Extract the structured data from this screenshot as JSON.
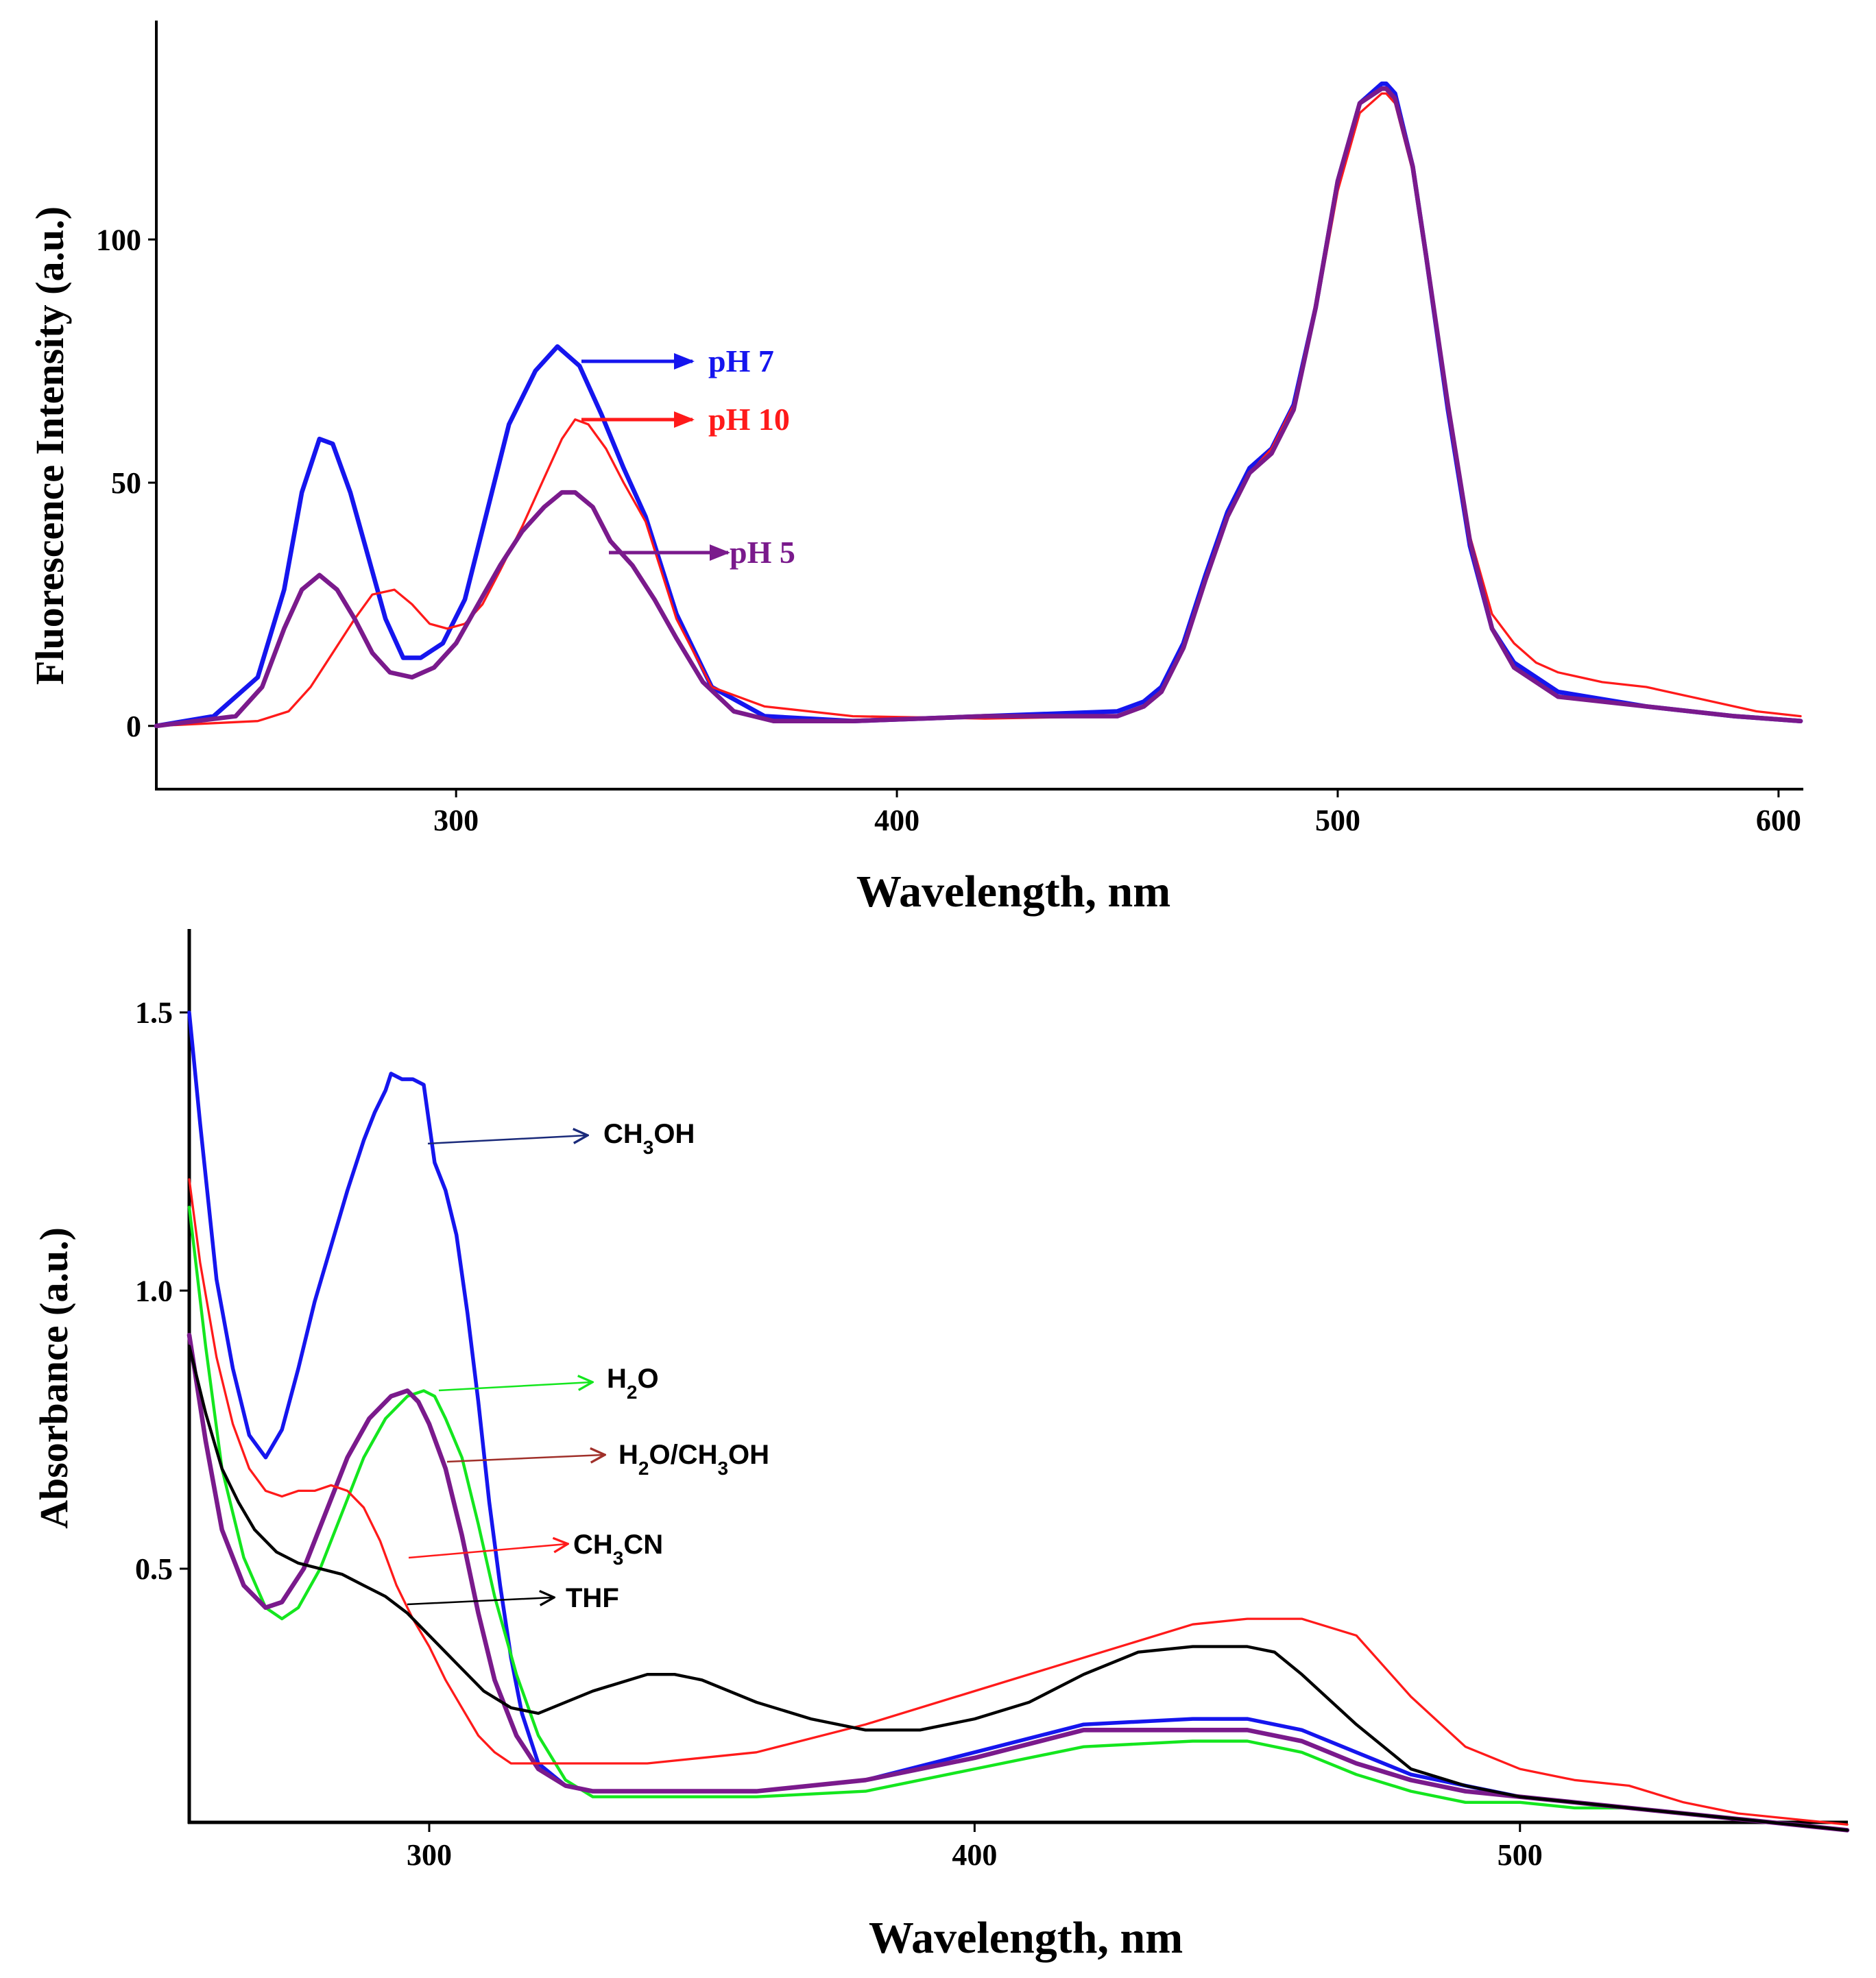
{
  "colors": {
    "blue": "#1515ee",
    "red": "#ff1a1a",
    "purple": "#7a1a8c",
    "green": "#14e61e",
    "black": "#000000",
    "navy": "#1a2a7a",
    "brown": "#a0302a"
  },
  "chart_data": [
    {
      "type": "line",
      "ylabel": "Fluorescence  Intensity (a.u.)",
      "xlabel": "Wavelength, nm",
      "xlim": [
        232,
        605
      ],
      "ylim": [
        -13,
        145
      ],
      "xticks": [
        300,
        400,
        500,
        600
      ],
      "yticks": [
        0,
        50,
        100
      ],
      "series": [
        {
          "name": "pH 7",
          "color": "blue",
          "stroke_weight": 3,
          "x": [
            232,
            245,
            255,
            261,
            265,
            269,
            272,
            276,
            280,
            284,
            288,
            292,
            297,
            302,
            307,
            312,
            318,
            323,
            328,
            333,
            338,
            343,
            350,
            358,
            370,
            390,
            420,
            450,
            456,
            460,
            465,
            470,
            475,
            480,
            485,
            490,
            495,
            500,
            505,
            510,
            511,
            513,
            517,
            520,
            525,
            530,
            535,
            540,
            550,
            570,
            590,
            605
          ],
          "y": [
            0,
            2,
            10,
            28,
            48,
            59,
            58,
            48,
            35,
            22,
            14,
            14,
            17,
            26,
            44,
            62,
            73,
            78,
            74,
            64,
            53,
            43,
            23,
            8,
            2,
            1,
            2,
            3,
            5,
            8,
            17,
            31,
            44,
            53,
            57,
            66,
            86,
            112,
            128,
            132,
            132,
            130,
            115,
            97,
            65,
            37,
            20,
            13,
            7,
            4,
            2,
            1
          ]
        },
        {
          "name": "pH 10",
          "color": "red",
          "stroke_weight": 1.5,
          "x": [
            232,
            255,
            262,
            267,
            272,
            277,
            281,
            286,
            290,
            294,
            298,
            302,
            306,
            310,
            315,
            320,
            324,
            327,
            330,
            334,
            338,
            343,
            350,
            358,
            370,
            390,
            420,
            450,
            456,
            460,
            465,
            470,
            475,
            480,
            485,
            490,
            495,
            500,
            505,
            510,
            511,
            513,
            517,
            520,
            525,
            530,
            535,
            540,
            545,
            550,
            560,
            570,
            580,
            595,
            605
          ],
          "y": [
            0,
            1,
            3,
            8,
            15,
            22,
            27,
            28,
            25,
            21,
            20,
            21,
            25,
            32,
            41,
            51,
            59,
            63,
            62,
            57,
            50,
            42,
            22,
            8,
            4,
            2,
            1.5,
            2,
            4,
            7,
            16,
            30,
            43,
            52,
            57,
            66,
            85,
            110,
            126,
            130,
            130,
            128,
            114,
            96,
            66,
            39,
            23,
            17,
            13,
            11,
            9,
            8,
            6,
            3,
            2
          ]
        },
        {
          "name": "pH 5",
          "color": "purple",
          "stroke_weight": 3,
          "x": [
            232,
            250,
            256,
            261,
            265,
            269,
            273,
            277,
            281,
            285,
            290,
            295,
            300,
            305,
            310,
            315,
            320,
            324,
            327,
            331,
            335,
            340,
            345,
            350,
            356,
            363,
            372,
            390,
            420,
            450,
            456,
            460,
            465,
            470,
            475,
            480,
            485,
            490,
            495,
            500,
            505,
            510,
            511,
            513,
            517,
            520,
            525,
            530,
            535,
            540,
            550,
            570,
            590,
            605
          ],
          "y": [
            0,
            2,
            8,
            20,
            28,
            31,
            28,
            22,
            15,
            11,
            10,
            12,
            17,
            25,
            33,
            40,
            45,
            48,
            48,
            45,
            38,
            33,
            26,
            18,
            9,
            3,
            1,
            1,
            2,
            2,
            4,
            7,
            16,
            30,
            43,
            52,
            56,
            65,
            86,
            112,
            128,
            131,
            131,
            129,
            115,
            97,
            66,
            38,
            20,
            12,
            6,
            4,
            2,
            1
          ]
        }
      ],
      "annotations": [
        {
          "text": "pH 7",
          "color": "blue"
        },
        {
          "text": "pH 10",
          "color": "red"
        },
        {
          "text": "pH 5",
          "color": "purple"
        }
      ]
    },
    {
      "type": "line",
      "ylabel": "Absorbance (a.u.)",
      "xlabel": "Wavelength, nm",
      "xlim": [
        256,
        560
      ],
      "ylim": [
        0.044,
        1.65
      ],
      "xticks": [
        300,
        400,
        500
      ],
      "yticks": [
        0.5,
        1.0,
        1.5
      ],
      "series": [
        {
          "name": "CH3OH",
          "color": "blue",
          "stroke_weight": 2.5,
          "x": [
            256,
            258,
            261,
            264,
            267,
            270,
            273,
            276,
            279,
            282,
            285,
            288,
            290,
            292,
            293,
            295,
            297,
            299,
            301,
            303,
            305,
            307,
            309,
            311,
            313,
            315,
            317,
            320,
            325,
            330,
            340,
            360,
            380,
            400,
            420,
            440,
            450,
            460,
            470,
            480,
            490,
            500,
            510,
            520,
            530,
            540,
            550,
            560
          ],
          "y": [
            1.5,
            1.3,
            1.02,
            0.86,
            0.74,
            0.7,
            0.75,
            0.86,
            0.98,
            1.08,
            1.18,
            1.27,
            1.32,
            1.36,
            1.39,
            1.38,
            1.38,
            1.37,
            1.23,
            1.18,
            1.1,
            0.96,
            0.8,
            0.62,
            0.47,
            0.34,
            0.24,
            0.15,
            0.11,
            0.1,
            0.1,
            0.1,
            0.12,
            0.17,
            0.22,
            0.23,
            0.23,
            0.21,
            0.17,
            0.13,
            0.11,
            0.09,
            0.08,
            0.07,
            0.06,
            0.05,
            0.04,
            0.03
          ]
        },
        {
          "name": "H2O",
          "color": "green",
          "stroke_weight": 2,
          "x": [
            256,
            259,
            262,
            266,
            270,
            273,
            276,
            280,
            284,
            288,
            292,
            296,
            299,
            301,
            303,
            306,
            309,
            312,
            316,
            320,
            325,
            330,
            340,
            360,
            380,
            400,
            420,
            440,
            450,
            460,
            470,
            480,
            490,
            500,
            510,
            520,
            530,
            540,
            550,
            560
          ],
          "y": [
            1.15,
            0.9,
            0.68,
            0.52,
            0.43,
            0.41,
            0.43,
            0.5,
            0.6,
            0.7,
            0.77,
            0.81,
            0.82,
            0.81,
            0.77,
            0.7,
            0.58,
            0.45,
            0.31,
            0.2,
            0.12,
            0.09,
            0.09,
            0.09,
            0.1,
            0.14,
            0.18,
            0.19,
            0.19,
            0.17,
            0.13,
            0.1,
            0.08,
            0.08,
            0.07,
            0.07,
            0.06,
            0.05,
            0.04,
            0.03
          ]
        },
        {
          "name": "H2O/CH3OH",
          "color": "purple",
          "stroke_weight": 3,
          "x": [
            256,
            259,
            262,
            266,
            270,
            273,
            277,
            281,
            285,
            289,
            293,
            296,
            298,
            300,
            303,
            306,
            309,
            312,
            316,
            320,
            325,
            330,
            340,
            360,
            380,
            400,
            420,
            440,
            450,
            460,
            470,
            480,
            490,
            500,
            510,
            520,
            530,
            540,
            550,
            560
          ],
          "y": [
            0.92,
            0.73,
            0.57,
            0.47,
            0.43,
            0.44,
            0.5,
            0.6,
            0.7,
            0.77,
            0.81,
            0.82,
            0.8,
            0.76,
            0.68,
            0.56,
            0.42,
            0.3,
            0.2,
            0.14,
            0.11,
            0.1,
            0.1,
            0.1,
            0.12,
            0.16,
            0.21,
            0.21,
            0.21,
            0.19,
            0.15,
            0.12,
            0.1,
            0.09,
            0.08,
            0.07,
            0.06,
            0.05,
            0.04,
            0.03
          ]
        },
        {
          "name": "CH3CN",
          "color": "red",
          "stroke_weight": 1.5,
          "x": [
            256,
            258,
            261,
            264,
            267,
            270,
            273,
            276,
            279,
            282,
            285,
            288,
            291,
            294,
            297,
            300,
            303,
            306,
            309,
            312,
            315,
            320,
            330,
            340,
            360,
            380,
            400,
            420,
            440,
            450,
            460,
            470,
            480,
            490,
            500,
            510,
            520,
            530,
            540,
            550,
            560
          ],
          "y": [
            1.2,
            1.05,
            0.88,
            0.76,
            0.68,
            0.64,
            0.63,
            0.64,
            0.64,
            0.65,
            0.64,
            0.61,
            0.55,
            0.47,
            0.41,
            0.36,
            0.3,
            0.25,
            0.2,
            0.17,
            0.15,
            0.15,
            0.15,
            0.15,
            0.17,
            0.22,
            0.28,
            0.34,
            0.4,
            0.41,
            0.41,
            0.38,
            0.27,
            0.18,
            0.14,
            0.12,
            0.11,
            0.08,
            0.06,
            0.05,
            0.04
          ]
        },
        {
          "name": "THF",
          "color": "black",
          "stroke_weight": 2,
          "x": [
            256,
            259,
            262,
            265,
            268,
            272,
            276,
            280,
            284,
            288,
            292,
            296,
            300,
            305,
            310,
            315,
            320,
            330,
            340,
            345,
            350,
            360,
            370,
            380,
            390,
            400,
            410,
            420,
            430,
            440,
            450,
            455,
            460,
            470,
            480,
            490,
            500,
            510,
            520,
            530,
            540,
            550,
            560
          ],
          "y": [
            0.9,
            0.78,
            0.68,
            0.62,
            0.57,
            0.53,
            0.51,
            0.5,
            0.49,
            0.47,
            0.45,
            0.42,
            0.38,
            0.33,
            0.28,
            0.25,
            0.24,
            0.28,
            0.31,
            0.31,
            0.3,
            0.26,
            0.23,
            0.21,
            0.21,
            0.23,
            0.26,
            0.31,
            0.35,
            0.36,
            0.36,
            0.35,
            0.31,
            0.22,
            0.14,
            0.11,
            0.09,
            0.08,
            0.07,
            0.06,
            0.05,
            0.04,
            0.03
          ]
        }
      ],
      "annotations": [
        {
          "text": "CH3OH",
          "arrow_color": "navy"
        },
        {
          "text": "H2O",
          "arrow_color": "green"
        },
        {
          "text": "H2O/CH3OH",
          "arrow_color": "brown"
        },
        {
          "text": "CH3CN",
          "arrow_color": "red"
        },
        {
          "text": "THF",
          "arrow_color": "black"
        }
      ]
    }
  ]
}
